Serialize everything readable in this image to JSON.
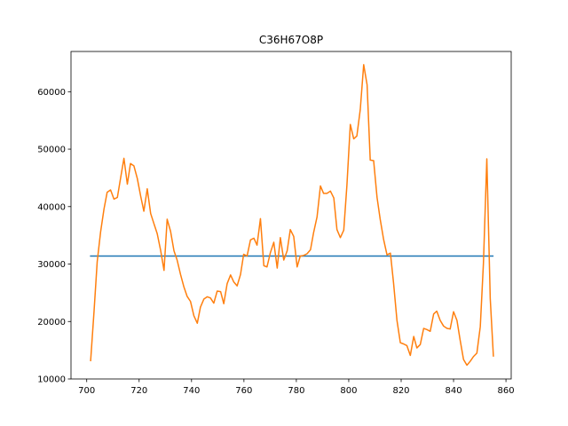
{
  "chart_data": {
    "type": "line",
    "title": "C36H67O8P",
    "xlabel": "",
    "ylabel": "",
    "xlim": [
      694,
      862
    ],
    "ylim": [
      10000,
      67000
    ],
    "xticks": [
      700,
      720,
      740,
      760,
      780,
      800,
      820,
      840,
      860
    ],
    "yticks": [
      10000,
      20000,
      30000,
      40000,
      50000,
      60000
    ],
    "grid": false,
    "legend": "none",
    "series": [
      {
        "color": "#1f77b4",
        "x": [
          701.5,
          855.0
        ],
        "y": [
          31400,
          31400
        ]
      },
      {
        "color": "#ff7f0e",
        "x": [
          701.5,
          702.8,
          704.0,
          705.3,
          706.6,
          707.8,
          709.1,
          710.4,
          711.7,
          712.9,
          714.2,
          715.5,
          716.7,
          718.0,
          719.3,
          720.6,
          721.8,
          723.1,
          724.4,
          725.6,
          726.9,
          728.2,
          729.5,
          730.7,
          732.0,
          733.3,
          734.5,
          735.8,
          737.1,
          738.3,
          739.6,
          740.9,
          742.2,
          743.4,
          744.7,
          746.0,
          747.2,
          748.5,
          749.8,
          751.1,
          752.3,
          753.6,
          754.9,
          756.1,
          757.4,
          758.7,
          759.9,
          761.2,
          762.5,
          763.8,
          765.0,
          766.3,
          767.6,
          768.8,
          770.1,
          771.4,
          772.7,
          773.9,
          775.2,
          776.5,
          777.7,
          779.0,
          780.3,
          781.5,
          782.8,
          784.1,
          785.4,
          786.6,
          787.9,
          789.2,
          790.4,
          791.7,
          793.0,
          794.3,
          795.5,
          796.8,
          798.1,
          799.3,
          800.6,
          801.9,
          803.1,
          804.4,
          805.7,
          807.0,
          808.2,
          809.5,
          810.8,
          812.0,
          813.3,
          814.6,
          815.9,
          817.1,
          818.4,
          819.7,
          820.9,
          822.2,
          823.5,
          824.8,
          826.0,
          827.3,
          828.6,
          829.8,
          831.1,
          832.4,
          833.6,
          834.9,
          836.2,
          837.5,
          838.7,
          840.0,
          841.3,
          842.5,
          843.8,
          845.1,
          846.4,
          847.6,
          848.9,
          850.2,
          851.4,
          852.7,
          854.0,
          855.2
        ],
        "y": [
          13200,
          21800,
          30400,
          35600,
          39600,
          42500,
          42900,
          41300,
          41600,
          44900,
          48400,
          43900,
          47500,
          47100,
          44900,
          41800,
          39200,
          43100,
          38800,
          37100,
          35300,
          32400,
          28900,
          37800,
          35700,
          32300,
          30700,
          28200,
          26000,
          24400,
          23500,
          21000,
          19700,
          22500,
          23900,
          24300,
          24100,
          23200,
          25300,
          25200,
          23100,
          26600,
          28100,
          26900,
          26200,
          28200,
          31700,
          31400,
          34200,
          34500,
          33300,
          37900,
          29700,
          29500,
          32000,
          33800,
          29300,
          34600,
          30700,
          32300,
          36000,
          34800,
          29500,
          31400,
          31500,
          31800,
          32500,
          35500,
          38200,
          43600,
          42300,
          42300,
          42700,
          41500,
          36000,
          34600,
          35900,
          43700,
          54300,
          51800,
          52300,
          56900,
          64700,
          61200,
          48100,
          48000,
          41600,
          37800,
          34300,
          31600,
          31900,
          26700,
          20200,
          16300,
          16100,
          15800,
          14100,
          17400,
          15400,
          16000,
          18800,
          18600,
          18300,
          21300,
          21800,
          20200,
          19200,
          18800,
          18700,
          21700,
          20200,
          16800,
          13400,
          12400,
          13100,
          13900,
          14500,
          19100,
          30100,
          48300,
          24000,
          14000
        ]
      }
    ]
  }
}
